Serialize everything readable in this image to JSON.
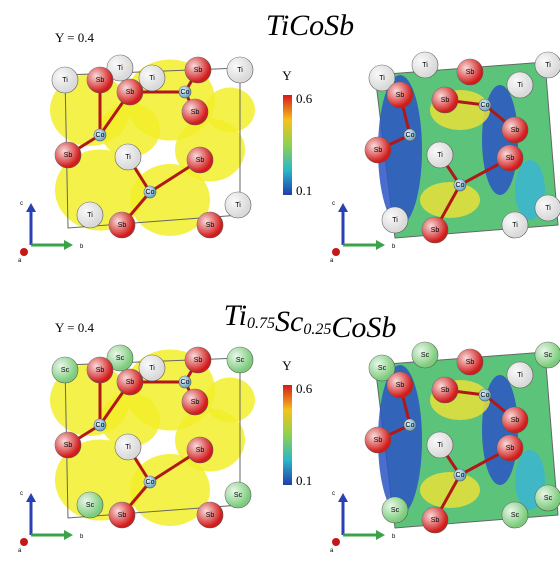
{
  "figure": {
    "elements": [
      {
        "symbol": "Ti",
        "color": "#d9d9d9"
      },
      {
        "symbol": "Sb",
        "color": "#d21c1c"
      },
      {
        "symbol": "Co",
        "color": "#6fa8c8"
      },
      {
        "symbol": "Sc",
        "color": "#7ccc7c"
      }
    ],
    "rows": [
      {
        "title": [
          {
            "text": "TiCoSb"
          }
        ],
        "isovalue": "Υ = 0.4",
        "colorbar_symbol": "Υ",
        "colorbar_ticks": [
          0.6,
          0.1
        ],
        "axes": [
          "c",
          "a",
          "b"
        ],
        "left_atoms": [
          0,
          0,
          0,
          0,
          1,
          1,
          1,
          1,
          1,
          0,
          1,
          0,
          1,
          1,
          0,
          2,
          2,
          2
        ],
        "right_atoms": [
          0,
          0,
          1,
          0,
          1,
          1,
          0,
          1,
          1,
          0,
          1,
          0,
          1,
          0,
          0,
          2,
          2,
          2
        ]
      },
      {
        "title": [
          {
            "text": "Ti",
            "sub": "0.75"
          },
          {
            "text": "Sc",
            "sub": "0.25"
          },
          {
            "text": "CoSb"
          }
        ],
        "isovalue": "Υ = 0.4",
        "colorbar_symbol": "Υ",
        "colorbar_ticks": [
          0.6,
          0.1
        ],
        "axes": [
          "c",
          "a",
          "b"
        ],
        "left_atoms": [
          3,
          3,
          0,
          3,
          1,
          1,
          1,
          1,
          1,
          0,
          1,
          3,
          1,
          1,
          3,
          2,
          2,
          2
        ],
        "right_atoms": [
          3,
          3,
          1,
          3,
          1,
          1,
          0,
          1,
          1,
          0,
          1,
          3,
          1,
          3,
          3,
          2,
          2,
          2
        ]
      }
    ]
  }
}
